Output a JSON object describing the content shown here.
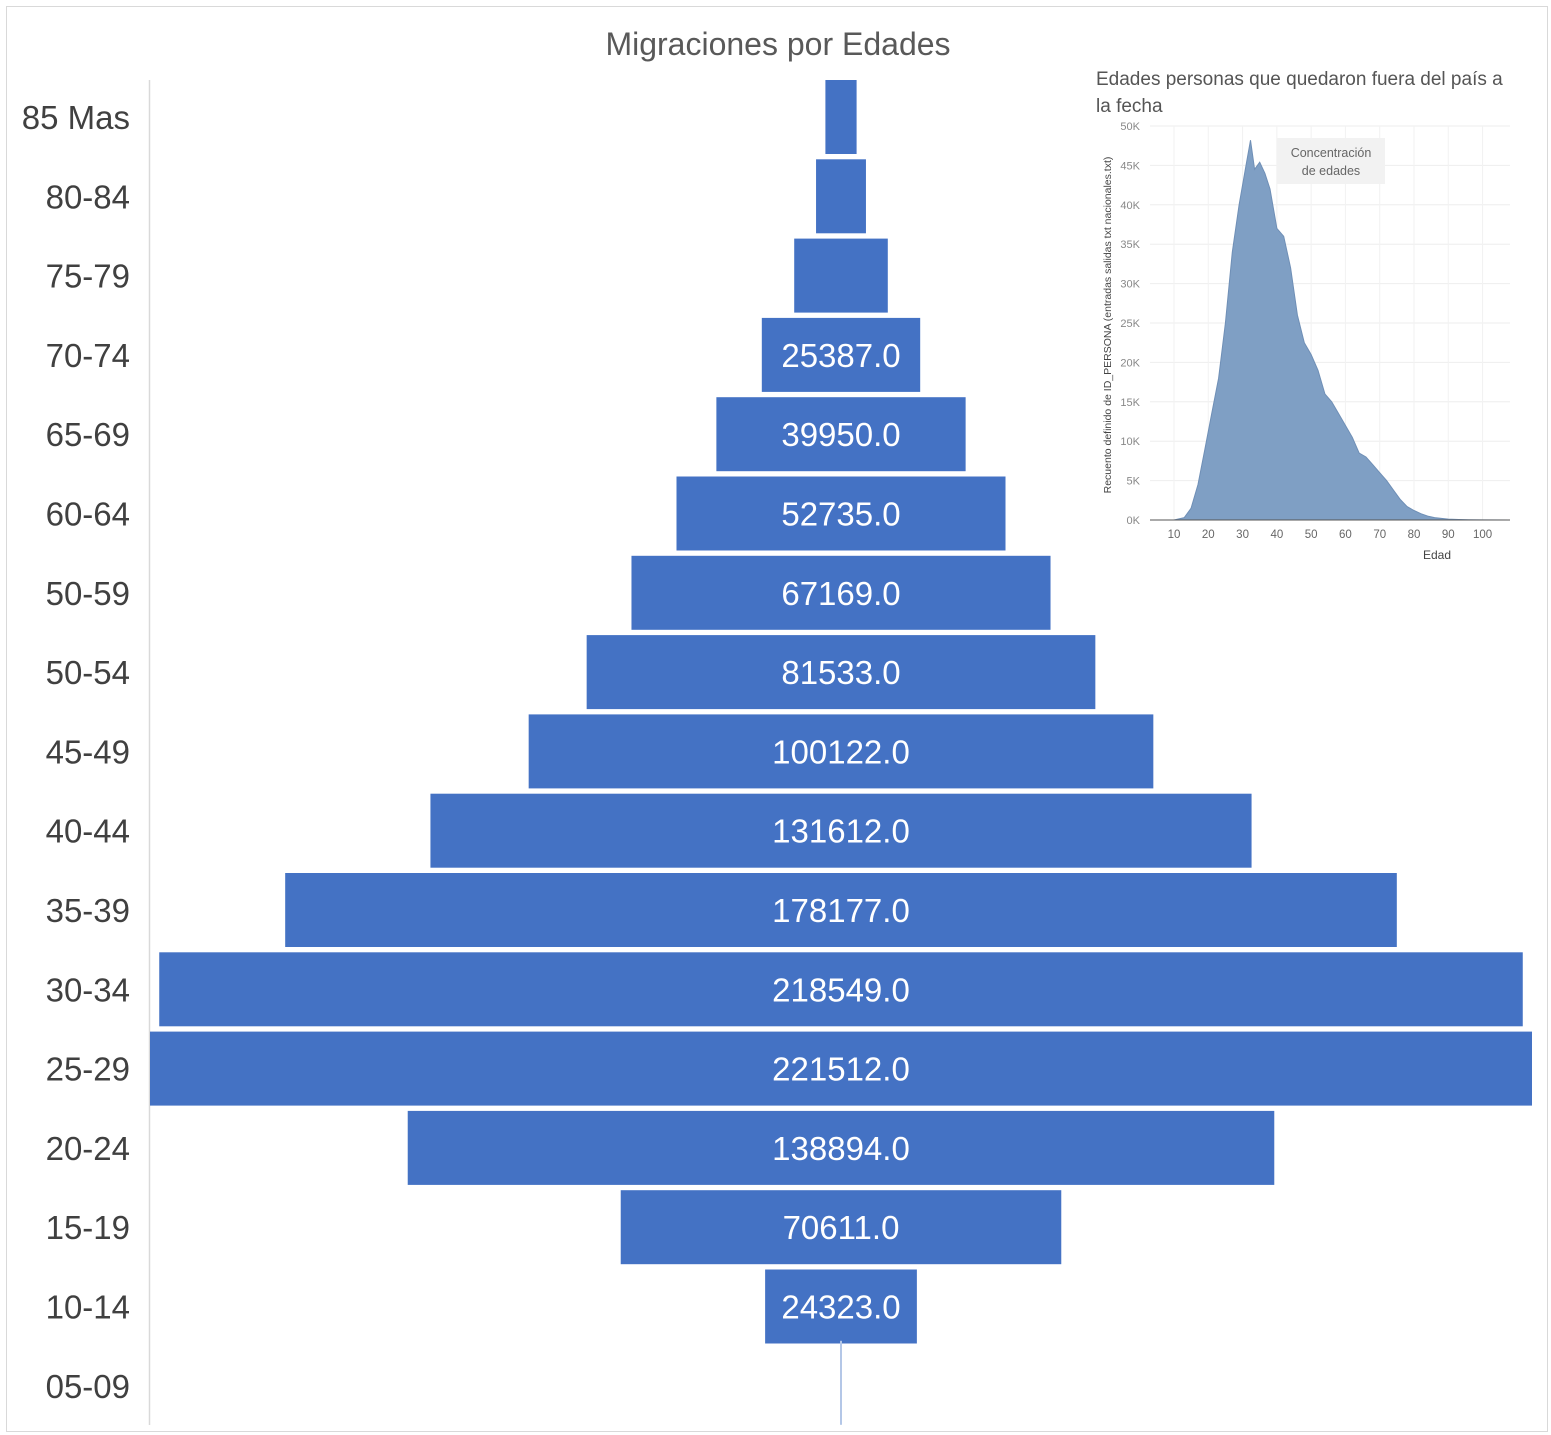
{
  "chart_data": [
    {
      "type": "bar",
      "orientation": "horizontal-centered",
      "title": "Migraciones por Edades",
      "categories": [
        "85 Mas",
        "80-84",
        "75-79",
        "70-74",
        "65-69",
        "60-64",
        "50-59",
        "50-54",
        "45-49",
        "40-44",
        "35-39",
        "30-34",
        "25-29",
        "20-24",
        "15-19",
        "10-14",
        "05-09"
      ],
      "values": [
        5000,
        8000,
        15000,
        25387.0,
        39950.0,
        52735.0,
        67169.0,
        81533.0,
        100122.0,
        131612.0,
        178177.0,
        218549.0,
        221512.0,
        138894.0,
        70611.0,
        24323.0,
        300
      ],
      "data_labels": [
        "",
        "",
        "",
        "25387.0",
        "39950.0",
        "52735.0",
        "67169.0",
        "81533.0",
        "100122.0",
        "131612.0",
        "178177.0",
        "218549.0",
        "221512.0",
        "138894.0",
        "70611.0",
        "24323.0",
        ""
      ],
      "bar_color": "#4472c4",
      "label_color": "#ffffff"
    },
    {
      "type": "area",
      "title": "Edades personas que quedaron fuera del país a la fecha",
      "xlabel": "Edad",
      "ylabel": "Recuento definido de ID_PERSONA (entradas salidas txt nacionales.txt)",
      "xlim": [
        3,
        108
      ],
      "ylim": [
        0,
        50000
      ],
      "xticks": [
        10,
        20,
        30,
        40,
        50,
        60,
        70,
        80,
        90,
        100
      ],
      "yticks": [
        0,
        5000,
        10000,
        15000,
        20000,
        25000,
        30000,
        35000,
        40000,
        45000,
        50000
      ],
      "ytick_labels": [
        "0K",
        "5K",
        "10K",
        "15K",
        "20K",
        "25K",
        "30K",
        "35K",
        "40K",
        "45K",
        "50K"
      ],
      "grid": true,
      "annotation": "Concentración de edades",
      "fill_color": "#7f9fc4",
      "x": [
        3,
        10,
        13,
        15,
        17,
        19,
        21,
        23,
        25,
        27,
        29,
        31,
        32.3,
        33.5,
        35,
        36.5,
        38,
        40,
        42,
        44,
        46,
        48,
        50,
        52,
        54,
        56,
        58,
        60,
        62,
        64,
        66,
        68,
        70,
        72,
        74,
        76,
        78,
        80,
        82,
        84,
        86,
        88,
        90,
        93,
        96,
        100,
        108
      ],
      "y": [
        0,
        0,
        300,
        1500,
        4500,
        9000,
        13500,
        18000,
        25000,
        34000,
        40000,
        45000,
        48200,
        44500,
        45400,
        44000,
        42000,
        37000,
        36000,
        32000,
        26000,
        22500,
        21000,
        19000,
        16000,
        15000,
        13500,
        12000,
        10500,
        8500,
        8000,
        7000,
        6000,
        5000,
        3800,
        2600,
        1700,
        1200,
        800,
        500,
        300,
        200,
        120,
        60,
        30,
        10,
        0
      ]
    }
  ]
}
